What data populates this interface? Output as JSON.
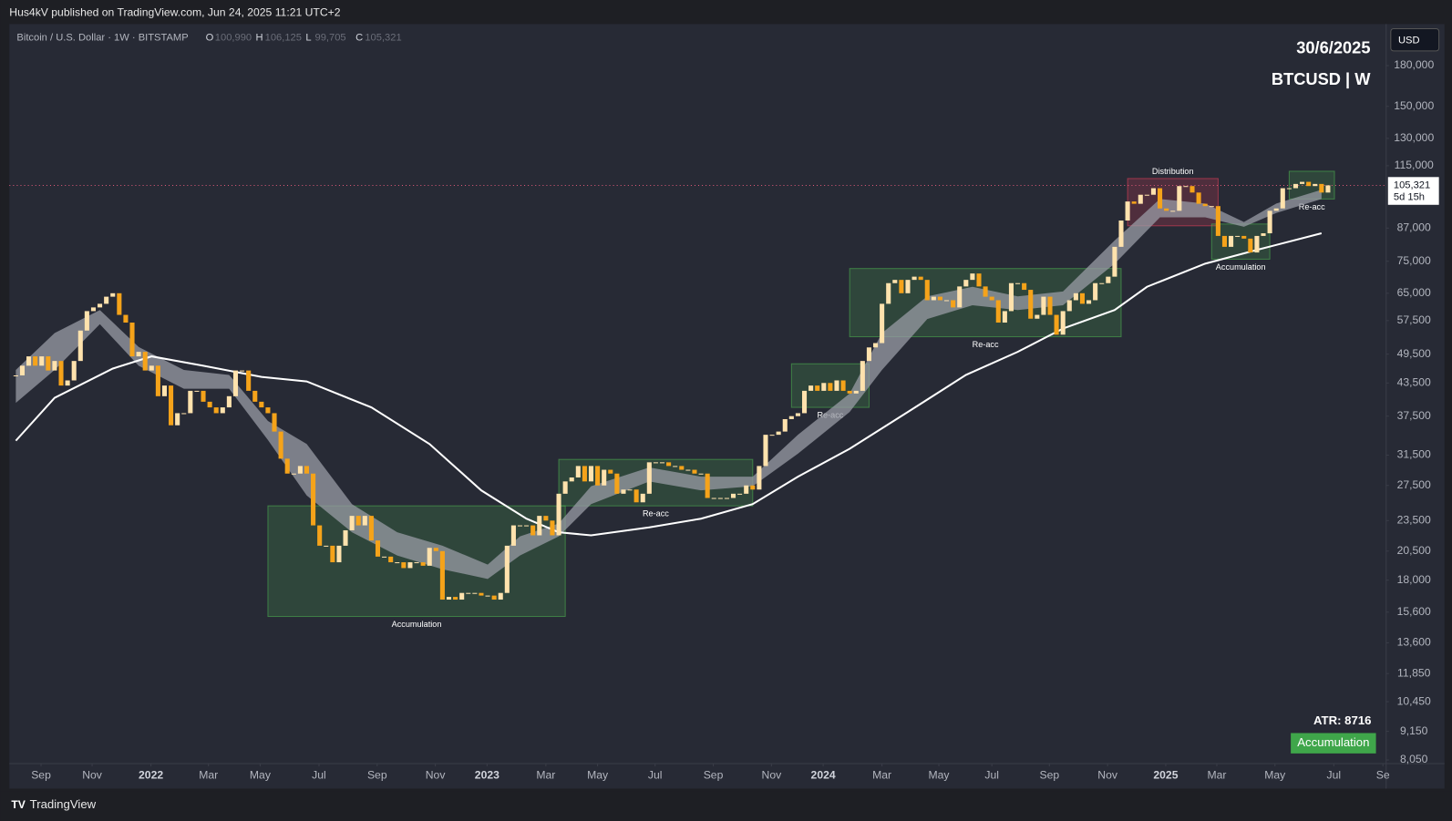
{
  "header": {
    "publisher": "Hus4kV published on TradingView.com, Jun 24, 2025 11:21 UTC+2",
    "symbol": "Bitcoin / U.S. Dollar · 1W · BITSTAMP",
    "ohlc": [
      {
        "key": "O",
        "value": "100,990"
      },
      {
        "key": "H",
        "value": "106,125"
      },
      {
        "key": "L",
        "value": "99,705"
      },
      {
        "key": "C",
        "value": "105,321"
      }
    ],
    "date": "30/6/2025",
    "ticker": "BTCUSD | W",
    "currency": "USD"
  },
  "footer": {
    "atr": "ATR: 8716",
    "badge": "Accumulation",
    "brand": "TradingView"
  },
  "chart_data": {
    "type": "candlestick",
    "log_scale": true,
    "grid": false,
    "up_color": "#ffe2ad",
    "down_color": "#f5a31a",
    "close": [
      45,
      47,
      49,
      47,
      49,
      46,
      48,
      43,
      44,
      48,
      55,
      60,
      61,
      62,
      64,
      65,
      59,
      57,
      49,
      50,
      46,
      47,
      41,
      43,
      36,
      38,
      38,
      42,
      42,
      40,
      39,
      38,
      39,
      41,
      46,
      46,
      42,
      40,
      39,
      38,
      35,
      31,
      29,
      29,
      30,
      29,
      23,
      21,
      21,
      19.5,
      21,
      22.5,
      24,
      23,
      24,
      21.5,
      20,
      20,
      19.5,
      19.5,
      19,
      19.5,
      19.5,
      19.2,
      20.8,
      20.5,
      16.5,
      16.7,
      16.5,
      17,
      17,
      17,
      16.8,
      16.8,
      16.5,
      17,
      21,
      23,
      23,
      23,
      22,
      24,
      23.5,
      22,
      26.5,
      28,
      28.5,
      30,
      28,
      30,
      27.5,
      29.5,
      29,
      26.5,
      27,
      27,
      25.5,
      26.5,
      30.5,
      30.5,
      30.5,
      30,
      30,
      29.5,
      29.5,
      29,
      29,
      26,
      26,
      26,
      26,
      26.5,
      26.5,
      27.5,
      27,
      30,
      34.5,
      34.5,
      35,
      37,
      37.5,
      38,
      42,
      43,
      42,
      43.5,
      42,
      44,
      42,
      41.5,
      42,
      48,
      51,
      52,
      62,
      68,
      69,
      65,
      69,
      70,
      69,
      63,
      64,
      63,
      63,
      61,
      67,
      69,
      71,
      67,
      64,
      63,
      57,
      60,
      68,
      68,
      66,
      58,
      59,
      64,
      59,
      54,
      60,
      63,
      65,
      62,
      63,
      68,
      68,
      70,
      80,
      90,
      98,
      97,
      101,
      101,
      104,
      95,
      94,
      94,
      105,
      105,
      102,
      97,
      96,
      96,
      84,
      80,
      84,
      84,
      83,
      78,
      84,
      85,
      94,
      95,
      104,
      104,
      106,
      107,
      105,
      106,
      102,
      105.321
    ],
    "ylim": [
      7.92,
      215
    ],
    "yticks": [
      {
        "value": 8.05,
        "label": "8,050"
      },
      {
        "value": 9.15,
        "label": "9,150"
      },
      {
        "value": 10.45,
        "label": "10,450"
      },
      {
        "value": 11.85,
        "label": "11,850"
      },
      {
        "value": 13.6,
        "label": "13,600"
      },
      {
        "value": 15.6,
        "label": "15,600"
      },
      {
        "value": 18,
        "label": "18,000"
      },
      {
        "value": 20.5,
        "label": "20,500"
      },
      {
        "value": 23.5,
        "label": "23,500"
      },
      {
        "value": 27.5,
        "label": "27,500"
      },
      {
        "value": 31.5,
        "label": "31,500"
      },
      {
        "value": 37.5,
        "label": "37,500"
      },
      {
        "value": 43.5,
        "label": "43,500"
      },
      {
        "value": 49.5,
        "label": "49,500"
      },
      {
        "value": 57.5,
        "label": "57,500"
      },
      {
        "value": 65,
        "label": "65,000"
      },
      {
        "value": 75,
        "label": "75,000"
      },
      {
        "value": 87,
        "label": "87,000"
      },
      {
        "value": 115,
        "label": "115,000"
      },
      {
        "value": 130,
        "label": "130,000"
      },
      {
        "value": 150,
        "label": "150,000"
      },
      {
        "value": 180,
        "label": "180,000"
      }
    ],
    "xlim": [
      -1,
      212
    ],
    "xticks": [
      {
        "value": 3.9,
        "label": "Sep"
      },
      {
        "value": 11.8,
        "label": "Nov"
      },
      {
        "value": 20.9,
        "label": "2022"
      },
      {
        "value": 29.8,
        "label": "Mar"
      },
      {
        "value": 37.8,
        "label": "May"
      },
      {
        "value": 46.9,
        "label": "Jul"
      },
      {
        "value": 55.9,
        "label": "Sep"
      },
      {
        "value": 64.9,
        "label": "Nov"
      },
      {
        "value": 72.9,
        "label": "2023"
      },
      {
        "value": 82,
        "label": "Mar"
      },
      {
        "value": 90,
        "label": "May"
      },
      {
        "value": 98.9,
        "label": "Jul"
      },
      {
        "value": 107.9,
        "label": "Sep"
      },
      {
        "value": 116.9,
        "label": "Nov"
      },
      {
        "value": 124.9,
        "label": "2024"
      },
      {
        "value": 134,
        "label": "Mar"
      },
      {
        "value": 142.8,
        "label": "May"
      },
      {
        "value": 151,
        "label": "Jul"
      },
      {
        "value": 159.9,
        "label": "Sep"
      },
      {
        "value": 168.9,
        "label": "Nov"
      },
      {
        "value": 177.9,
        "label": "2025"
      },
      {
        "value": 185.8,
        "label": "Mar"
      },
      {
        "value": 194.8,
        "label": "May"
      },
      {
        "value": 203.9,
        "label": "Jul"
      },
      {
        "value": 211.5,
        "label": "Se"
      }
    ],
    "last_price": {
      "value": 105.321,
      "label": "105,321",
      "countdown": "5d 15h",
      "color": "#e05a7a"
    },
    "line": {
      "color": "#ffffff",
      "x": [
        0,
        6,
        15,
        21,
        29,
        38,
        45,
        55,
        64,
        72,
        79,
        84,
        89,
        98,
        106,
        114,
        121,
        129,
        138,
        147,
        155,
        162,
        170,
        175,
        184,
        192,
        202
      ],
      "values": [
        33.6,
        40.7,
        46.4,
        49,
        47,
        44.7,
        43.8,
        39,
        33.1,
        26.9,
        23.7,
        22.3,
        22,
        22.8,
        23.7,
        25.3,
        28.6,
        32.4,
        38.2,
        45.1,
        50,
        55.5,
        60.3,
        66.9,
        74.2,
        78.9,
        85
      ]
    },
    "band": {
      "color": "#9a9ca6",
      "x": [
        0,
        6,
        13,
        19,
        26,
        33,
        39,
        45,
        52,
        59,
        66,
        73,
        78,
        84,
        89,
        98,
        106,
        114,
        121,
        129,
        134,
        141,
        148,
        155,
        162,
        170,
        177,
        184,
        190,
        195,
        202
      ],
      "upper": [
        46.1,
        54.4,
        60.3,
        51.1,
        46.1,
        45.1,
        36.7,
        33.1,
        25.3,
        22.3,
        21,
        19.3,
        21.9,
        23.2,
        27.4,
        29.8,
        28.6,
        28.6,
        34.5,
        41.5,
        54.4,
        64.1,
        66.9,
        64.1,
        65.5,
        82.3,
        99.1,
        97.1,
        89.4,
        97.1,
        103.3
      ],
      "lower": [
        39.8,
        46.1,
        56.6,
        47,
        42.4,
        42.4,
        33.7,
        26.3,
        22.3,
        20.1,
        18.9,
        18.1,
        20.1,
        21.9,
        25.3,
        28,
        26.9,
        27.4,
        31.7,
        38.2,
        46.1,
        57.9,
        61.6,
        60.3,
        61.6,
        74.2,
        91.3,
        91.3,
        87.5,
        93.1,
        99.1
      ]
    },
    "zones": [
      {
        "label": "Accumulation",
        "x": [
          39,
          85
        ],
        "y": [
          15.3,
          25.1
        ],
        "color": "#4caf50",
        "label_pos": "bottom"
      },
      {
        "label": "Re-acc",
        "x": [
          84,
          114
        ],
        "y": [
          25.1,
          30.9
        ],
        "color": "#4caf50",
        "label_pos": "bottom"
      },
      {
        "label": "Re-acc",
        "x": [
          120,
          132
        ],
        "y": [
          39,
          47.4
        ],
        "color": "#4caf50",
        "label_pos": "bottom"
      },
      {
        "label": "Re-acc",
        "x": [
          129,
          171
        ],
        "y": [
          53.5,
          72.6
        ],
        "color": "#4caf50",
        "label_pos": "bottom"
      },
      {
        "label": "Distribution",
        "x": [
          172,
          186
        ],
        "y": [
          87.9,
          108.6
        ],
        "color": "#e0405a",
        "label_pos": "top"
      },
      {
        "label": "Accumulation",
        "x": [
          185,
          194
        ],
        "y": [
          75.7,
          88.6
        ],
        "color": "#4caf50",
        "label_pos": "bottom"
      },
      {
        "label": "Re-acc",
        "x": [
          197,
          204
        ],
        "y": [
          99.1,
          112.2
        ],
        "color": "#4caf50",
        "label_pos": "bottom"
      }
    ]
  }
}
